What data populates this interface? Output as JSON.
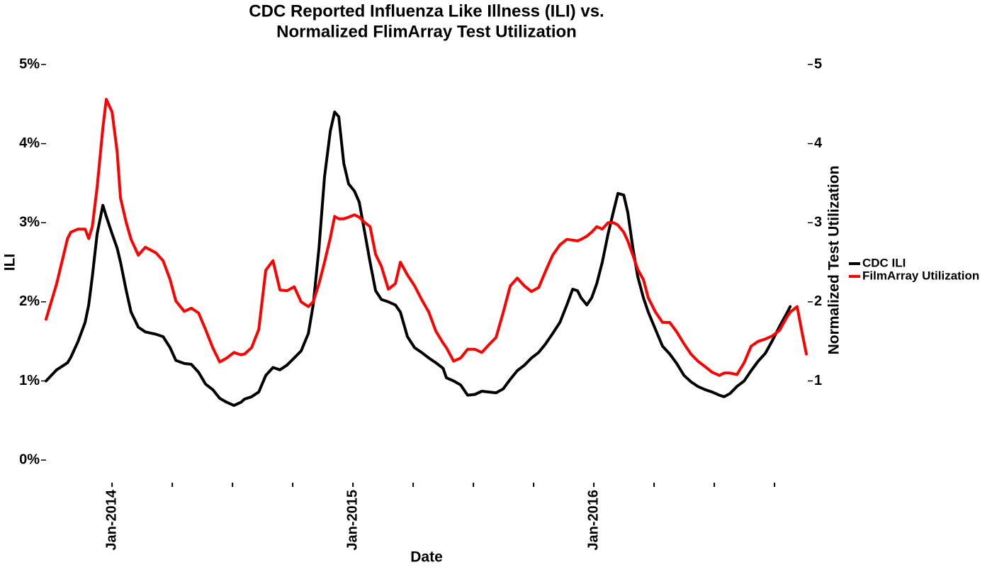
{
  "chart_data": {
    "type": "line",
    "title": [
      "CDC Reported Influenza Like Illness (ILI) vs.",
      "Normalized FlimArray Test Utilization"
    ],
    "xlabel": "Date",
    "ylabel": "ILI",
    "y2label": "Normalized Test Utilization",
    "legend": "right",
    "grid": false,
    "xlim": [
      2013.726,
      2016.888
    ],
    "ylim": [
      -0.25,
      5
    ],
    "y2lim": [
      -0.25,
      5
    ],
    "xticks": [
      {
        "value": 2014,
        "label": "Jan-2014"
      },
      {
        "value": 2014.25,
        "label": null
      },
      {
        "value": 2014.5,
        "label": null
      },
      {
        "value": 2014.75,
        "label": null
      },
      {
        "value": 2015,
        "label": "Jan-2015"
      },
      {
        "value": 2015.25,
        "label": null
      },
      {
        "value": 2015.5,
        "label": null
      },
      {
        "value": 2015.75,
        "label": null
      },
      {
        "value": 2016,
        "label": "Jan-2016"
      },
      {
        "value": 2016.25,
        "label": null
      },
      {
        "value": 2016.5,
        "label": null
      },
      {
        "value": 2016.75,
        "label": null
      }
    ],
    "yticks": [
      {
        "value": 0,
        "label": "0%"
      },
      {
        "value": 1,
        "label": "1%"
      },
      {
        "value": 2,
        "label": "2%"
      },
      {
        "value": 3,
        "label": "3%"
      },
      {
        "value": 4,
        "label": "4%"
      },
      {
        "value": 5,
        "label": "5%"
      }
    ],
    "y2ticks": [
      1,
      2,
      3,
      4,
      5
    ],
    "x": [
      2013.726,
      2013.77,
      2013.815,
      2013.829,
      2013.859,
      2013.888,
      2013.903,
      2013.918,
      2013.938,
      2013.962,
      2013.976,
      2014.0,
      2014.021,
      2014.035,
      2014.059,
      2014.079,
      2014.109,
      2014.138,
      2014.182,
      2014.212,
      2014.241,
      2014.265,
      2014.3,
      2014.329,
      2014.359,
      2014.388,
      2014.418,
      2014.447,
      2014.476,
      2014.506,
      2014.535,
      2014.55,
      2014.579,
      2014.609,
      2014.638,
      2014.668,
      2014.697,
      2014.726,
      2014.756,
      2014.785,
      2014.815,
      2014.835,
      2014.859,
      2014.882,
      2014.906,
      2014.924,
      2014.941,
      2014.962,
      2014.982,
      2015.006,
      2015.026,
      2015.05,
      2015.071,
      2015.094,
      2015.118,
      2015.147,
      2015.176,
      2015.197,
      2015.226,
      2015.256,
      2015.285,
      2015.315,
      2015.344,
      2015.374,
      2015.388,
      2015.418,
      2015.447,
      2015.476,
      2015.506,
      2015.535,
      2015.565,
      2015.594,
      2015.624,
      2015.653,
      2015.682,
      2015.712,
      2015.741,
      2015.771,
      2015.8,
      2015.829,
      2015.859,
      2015.888,
      2015.912,
      2015.932,
      2015.947,
      2015.971,
      2015.991,
      2016.012,
      2016.035,
      2016.059,
      2016.082,
      2016.1,
      2016.124,
      2016.141,
      2016.162,
      2016.182,
      2016.206,
      2016.226,
      2016.256,
      2016.285,
      2016.315,
      2016.344,
      2016.374,
      2016.403,
      2016.432,
      2016.462,
      2016.491,
      2016.521,
      2016.541,
      2016.565,
      2016.594,
      2016.624,
      2016.653,
      2016.682,
      2016.712,
      2016.741,
      2016.771,
      2016.8,
      2016.815,
      2016.844,
      2016.865,
      2016.882
    ],
    "series": [
      {
        "name": "CDC ILI",
        "color": "#000000",
        "axis": "y",
        "values": [
          1.0,
          1.14,
          1.23,
          1.3,
          1.5,
          1.74,
          1.96,
          2.32,
          2.86,
          3.22,
          3.08,
          2.86,
          2.68,
          2.5,
          2.14,
          1.87,
          1.68,
          1.62,
          1.59,
          1.56,
          1.42,
          1.26,
          1.22,
          1.21,
          1.11,
          0.96,
          0.89,
          0.78,
          0.73,
          0.69,
          0.73,
          0.77,
          0.8,
          0.86,
          1.07,
          1.17,
          1.14,
          1.2,
          1.29,
          1.38,
          1.6,
          1.96,
          2.68,
          3.58,
          4.16,
          4.4,
          4.34,
          3.75,
          3.49,
          3.4,
          3.26,
          2.86,
          2.5,
          2.14,
          2.03,
          2.0,
          1.96,
          1.87,
          1.56,
          1.42,
          1.36,
          1.29,
          1.23,
          1.16,
          1.04,
          1.0,
          0.95,
          0.82,
          0.83,
          0.87,
          0.86,
          0.85,
          0.9,
          1.02,
          1.13,
          1.2,
          1.29,
          1.36,
          1.47,
          1.6,
          1.74,
          1.96,
          2.16,
          2.14,
          2.05,
          1.96,
          2.05,
          2.23,
          2.5,
          2.86,
          3.15,
          3.37,
          3.35,
          3.13,
          2.68,
          2.32,
          2.05,
          1.87,
          1.65,
          1.44,
          1.34,
          1.22,
          1.07,
          0.99,
          0.93,
          0.89,
          0.86,
          0.82,
          0.8,
          0.84,
          0.93,
          1.0,
          1.13,
          1.25,
          1.35,
          1.51,
          1.69,
          1.85,
          1.94,
          null,
          null,
          null
        ]
      },
      {
        "name": "FilmArray Utilization",
        "color": "#ff0000",
        "axis": "y2",
        "values": [
          1.78,
          2.23,
          2.8,
          2.88,
          2.92,
          2.92,
          2.8,
          2.95,
          3.45,
          4.2,
          4.56,
          4.4,
          3.9,
          3.31,
          3.0,
          2.79,
          2.59,
          2.69,
          2.62,
          2.52,
          2.28,
          2.01,
          1.88,
          1.92,
          1.86,
          1.65,
          1.42,
          1.24,
          1.29,
          1.36,
          1.33,
          1.34,
          1.42,
          1.65,
          2.4,
          2.52,
          2.15,
          2.14,
          2.19,
          2.0,
          1.94,
          2.0,
          2.23,
          2.5,
          2.81,
          3.08,
          3.05,
          3.05,
          3.07,
          3.1,
          3.07,
          3.0,
          2.95,
          2.6,
          2.45,
          2.16,
          2.23,
          2.5,
          2.34,
          2.2,
          2.03,
          1.87,
          1.63,
          1.48,
          1.42,
          1.25,
          1.29,
          1.4,
          1.4,
          1.36,
          1.46,
          1.55,
          1.87,
          2.2,
          2.3,
          2.2,
          2.13,
          2.18,
          2.39,
          2.59,
          2.72,
          2.79,
          2.78,
          2.77,
          2.79,
          2.83,
          2.88,
          2.95,
          2.92,
          3.0,
          3.0,
          2.97,
          2.88,
          2.77,
          2.59,
          2.41,
          2.28,
          2.05,
          1.87,
          1.74,
          1.74,
          1.62,
          1.47,
          1.34,
          1.25,
          1.18,
          1.11,
          1.07,
          1.1,
          1.1,
          1.08,
          1.23,
          1.44,
          1.5,
          1.53,
          1.57,
          1.64,
          1.8,
          1.87,
          1.94,
          1.6,
          1.34
        ]
      }
    ]
  }
}
